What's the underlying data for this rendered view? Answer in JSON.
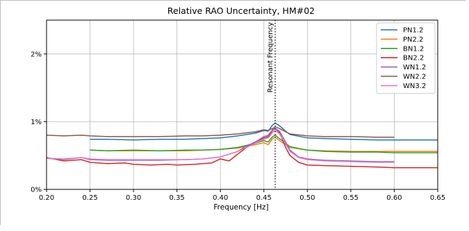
{
  "chart_data": {
    "type": "line",
    "title": "Relative RAO Uncertainty, HM#02",
    "xlabel": "Frequency [Hz]",
    "ylabel": "",
    "xlim": [
      0.2,
      0.65
    ],
    "ylim": [
      0,
      2.5
    ],
    "x_ticks": [
      0.2,
      0.25,
      0.3,
      0.35,
      0.4,
      0.45,
      0.5,
      0.55,
      0.6,
      0.65
    ],
    "x_tick_labels": [
      "0.20",
      "0.25",
      "0.30",
      "0.35",
      "0.40",
      "0.45",
      "0.50",
      "0.55",
      "0.60",
      "0.65"
    ],
    "y_ticks": [
      0,
      1,
      2
    ],
    "y_tick_labels": [
      "0%",
      "1%",
      "2%"
    ],
    "grid": true,
    "legend_position": "top-right",
    "annotation": {
      "label": "Resonant Frequency",
      "x": 0.463,
      "style": "dotted vertical line"
    },
    "series": [
      {
        "name": "PN1.2",
        "color": "#1f77b4",
        "points": [
          [
            0.25,
            0.74
          ],
          [
            0.27,
            0.74
          ],
          [
            0.3,
            0.73
          ],
          [
            0.33,
            0.74
          ],
          [
            0.36,
            0.74
          ],
          [
            0.38,
            0.75
          ],
          [
            0.4,
            0.76
          ],
          [
            0.42,
            0.79
          ],
          [
            0.44,
            0.83
          ],
          [
            0.45,
            0.87
          ],
          [
            0.455,
            0.86
          ],
          [
            0.46,
            0.95
          ],
          [
            0.463,
            0.98
          ],
          [
            0.468,
            0.94
          ],
          [
            0.475,
            0.86
          ],
          [
            0.48,
            0.81
          ],
          [
            0.5,
            0.76
          ],
          [
            0.52,
            0.75
          ],
          [
            0.55,
            0.74
          ],
          [
            0.58,
            0.73
          ],
          [
            0.6,
            0.73
          ],
          [
            0.65,
            0.73
          ]
        ]
      },
      {
        "name": "PN2.2",
        "color": "#ff7f0e",
        "points": [
          [
            0.25,
            0.58
          ],
          [
            0.27,
            0.57
          ],
          [
            0.3,
            0.57
          ],
          [
            0.33,
            0.57
          ],
          [
            0.36,
            0.57
          ],
          [
            0.38,
            0.58
          ],
          [
            0.4,
            0.59
          ],
          [
            0.42,
            0.61
          ],
          [
            0.44,
            0.66
          ],
          [
            0.45,
            0.69
          ],
          [
            0.455,
            0.66
          ],
          [
            0.46,
            0.75
          ],
          [
            0.463,
            0.77
          ],
          [
            0.468,
            0.72
          ],
          [
            0.475,
            0.66
          ],
          [
            0.48,
            0.62
          ],
          [
            0.5,
            0.58
          ],
          [
            0.52,
            0.57
          ],
          [
            0.55,
            0.56
          ],
          [
            0.58,
            0.56
          ],
          [
            0.6,
            0.56
          ],
          [
            0.65,
            0.56
          ]
        ]
      },
      {
        "name": "BN1.2",
        "color": "#2ca02c",
        "points": [
          [
            0.25,
            0.58
          ],
          [
            0.27,
            0.57
          ],
          [
            0.3,
            0.58
          ],
          [
            0.33,
            0.57
          ],
          [
            0.36,
            0.58
          ],
          [
            0.38,
            0.58
          ],
          [
            0.4,
            0.59
          ],
          [
            0.42,
            0.62
          ],
          [
            0.44,
            0.68
          ],
          [
            0.45,
            0.72
          ],
          [
            0.455,
            0.7
          ],
          [
            0.46,
            0.78
          ],
          [
            0.463,
            0.8
          ],
          [
            0.468,
            0.75
          ],
          [
            0.475,
            0.68
          ],
          [
            0.48,
            0.63
          ],
          [
            0.5,
            0.58
          ],
          [
            0.52,
            0.56
          ],
          [
            0.55,
            0.55
          ],
          [
            0.58,
            0.55
          ],
          [
            0.6,
            0.54
          ],
          [
            0.65,
            0.54
          ]
        ]
      },
      {
        "name": "BN2.2",
        "color": "#d62728",
        "points": [
          [
            0.2,
            0.47
          ],
          [
            0.22,
            0.42
          ],
          [
            0.24,
            0.44
          ],
          [
            0.25,
            0.4
          ],
          [
            0.27,
            0.38
          ],
          [
            0.29,
            0.39
          ],
          [
            0.3,
            0.37
          ],
          [
            0.32,
            0.36
          ],
          [
            0.34,
            0.37
          ],
          [
            0.35,
            0.36
          ],
          [
            0.37,
            0.37
          ],
          [
            0.39,
            0.39
          ],
          [
            0.4,
            0.45
          ],
          [
            0.41,
            0.42
          ],
          [
            0.42,
            0.52
          ],
          [
            0.43,
            0.62
          ],
          [
            0.44,
            0.7
          ],
          [
            0.45,
            0.76
          ],
          [
            0.455,
            0.78
          ],
          [
            0.46,
            0.87
          ],
          [
            0.463,
            0.9
          ],
          [
            0.468,
            0.84
          ],
          [
            0.475,
            0.62
          ],
          [
            0.48,
            0.5
          ],
          [
            0.49,
            0.4
          ],
          [
            0.5,
            0.36
          ],
          [
            0.52,
            0.35
          ],
          [
            0.55,
            0.34
          ],
          [
            0.58,
            0.33
          ],
          [
            0.6,
            0.32
          ],
          [
            0.62,
            0.32
          ],
          [
            0.65,
            0.32
          ]
        ]
      },
      {
        "name": "WN1.2",
        "color": "#9467bd",
        "points": [
          [
            0.2,
            0.46
          ],
          [
            0.22,
            0.44
          ],
          [
            0.24,
            0.47
          ],
          [
            0.25,
            0.44
          ],
          [
            0.27,
            0.43
          ],
          [
            0.3,
            0.43
          ],
          [
            0.33,
            0.43
          ],
          [
            0.36,
            0.44
          ],
          [
            0.38,
            0.45
          ],
          [
            0.4,
            0.48
          ],
          [
            0.42,
            0.56
          ],
          [
            0.43,
            0.64
          ],
          [
            0.44,
            0.7
          ],
          [
            0.45,
            0.78
          ],
          [
            0.455,
            0.8
          ],
          [
            0.46,
            0.88
          ],
          [
            0.463,
            0.9
          ],
          [
            0.468,
            0.86
          ],
          [
            0.475,
            0.7
          ],
          [
            0.48,
            0.58
          ],
          [
            0.49,
            0.48
          ],
          [
            0.5,
            0.45
          ],
          [
            0.52,
            0.43
          ],
          [
            0.55,
            0.42
          ],
          [
            0.58,
            0.41
          ],
          [
            0.6,
            0.41
          ]
        ]
      },
      {
        "name": "WN2.2",
        "color": "#8c564b",
        "points": [
          [
            0.2,
            0.8
          ],
          [
            0.22,
            0.79
          ],
          [
            0.24,
            0.8
          ],
          [
            0.25,
            0.79
          ],
          [
            0.27,
            0.78
          ],
          [
            0.3,
            0.78
          ],
          [
            0.33,
            0.78
          ],
          [
            0.36,
            0.79
          ],
          [
            0.38,
            0.79
          ],
          [
            0.4,
            0.8
          ],
          [
            0.42,
            0.82
          ],
          [
            0.44,
            0.85
          ],
          [
            0.45,
            0.88
          ],
          [
            0.455,
            0.87
          ],
          [
            0.46,
            0.9
          ],
          [
            0.463,
            0.92
          ],
          [
            0.468,
            0.9
          ],
          [
            0.475,
            0.85
          ],
          [
            0.48,
            0.82
          ],
          [
            0.5,
            0.79
          ],
          [
            0.52,
            0.78
          ],
          [
            0.55,
            0.78
          ],
          [
            0.58,
            0.77
          ],
          [
            0.6,
            0.77
          ]
        ]
      },
      {
        "name": "WN3.2",
        "color": "#e377c2",
        "points": [
          [
            0.2,
            0.46
          ],
          [
            0.22,
            0.45
          ],
          [
            0.24,
            0.47
          ],
          [
            0.25,
            0.45
          ],
          [
            0.27,
            0.44
          ],
          [
            0.3,
            0.44
          ],
          [
            0.33,
            0.44
          ],
          [
            0.36,
            0.44
          ],
          [
            0.38,
            0.45
          ],
          [
            0.4,
            0.48
          ],
          [
            0.42,
            0.56
          ],
          [
            0.43,
            0.62
          ],
          [
            0.44,
            0.68
          ],
          [
            0.45,
            0.74
          ],
          [
            0.455,
            0.76
          ],
          [
            0.46,
            0.84
          ],
          [
            0.463,
            0.87
          ],
          [
            0.468,
            0.82
          ],
          [
            0.475,
            0.67
          ],
          [
            0.48,
            0.56
          ],
          [
            0.49,
            0.47
          ],
          [
            0.5,
            0.44
          ],
          [
            0.52,
            0.42
          ],
          [
            0.55,
            0.41
          ],
          [
            0.58,
            0.4
          ],
          [
            0.6,
            0.4
          ]
        ]
      }
    ]
  }
}
